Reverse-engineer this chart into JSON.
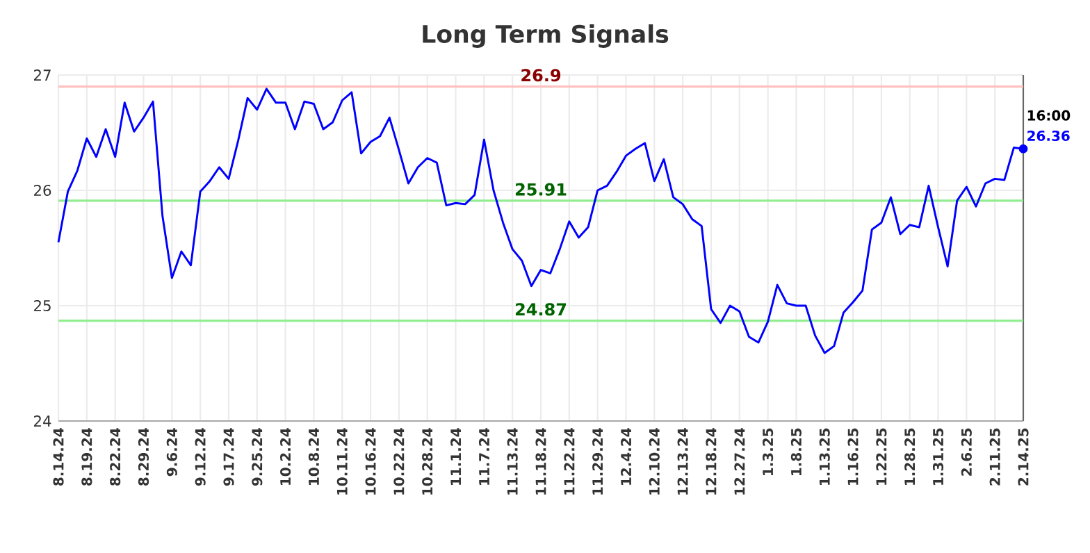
{
  "chart_data": {
    "type": "line",
    "title": "Long Term Signals",
    "categories": [
      "8.14.24",
      null,
      null,
      "8.19.24",
      null,
      null,
      "8.22.24",
      null,
      null,
      "8.29.24",
      null,
      null,
      "9.6.24",
      null,
      null,
      "9.12.24",
      null,
      null,
      "9.17.24",
      null,
      null,
      "9.25.24",
      null,
      null,
      "10.2.24",
      null,
      null,
      "10.8.24",
      null,
      null,
      "10.11.24",
      null,
      null,
      "10.16.24",
      null,
      null,
      "10.22.24",
      null,
      null,
      "10.28.24",
      null,
      null,
      "11.1.24",
      null,
      null,
      "11.7.24",
      null,
      null,
      "11.13.24",
      null,
      null,
      "11.18.24",
      null,
      null,
      "11.22.24",
      null,
      null,
      "11.29.24",
      null,
      null,
      "12.4.24",
      null,
      null,
      "12.10.24",
      null,
      null,
      "12.13.24",
      null,
      null,
      "12.18.24",
      null,
      null,
      "12.27.24",
      null,
      null,
      "1.3.25",
      null,
      null,
      "1.8.25",
      null,
      null,
      "1.13.25",
      null,
      null,
      "1.16.25",
      null,
      null,
      "1.22.25",
      null,
      null,
      "1.28.25",
      null,
      null,
      "1.31.25",
      null,
      null,
      "2.6.25",
      null,
      null,
      "2.11.25",
      null,
      null,
      "2.14.25"
    ],
    "series": [
      {
        "type": "line",
        "marker": "none",
        "color": "#0000ff",
        "values": [
          25.55,
          25.99,
          26.17,
          26.45,
          26.29,
          26.53,
          26.29,
          26.76,
          26.51,
          26.63,
          26.77,
          25.78,
          25.24,
          25.47,
          25.35,
          25.99,
          26.08,
          26.2,
          26.1,
          26.43,
          26.8,
          26.7,
          26.88,
          26.76,
          26.76,
          26.53,
          26.77,
          26.75,
          26.53,
          26.59,
          26.78,
          26.85,
          26.32,
          26.42,
          26.47,
          26.63,
          26.35,
          26.06,
          26.2,
          26.28,
          26.24,
          25.87,
          25.89,
          25.88,
          25.96,
          26.44,
          26.0,
          25.72,
          25.49,
          25.39,
          25.17,
          25.31,
          25.28,
          25.49,
          25.73,
          25.59,
          25.68,
          26.0,
          26.04,
          26.16,
          26.3,
          26.36,
          26.41,
          26.08,
          26.27,
          25.94,
          25.88,
          25.75,
          25.69,
          24.97,
          24.85,
          25.0,
          24.95,
          24.73,
          24.68,
          24.86,
          25.18,
          25.02,
          25.0,
          25.0,
          24.74,
          24.59,
          24.65,
          24.94,
          25.03,
          25.13,
          25.66,
          25.72,
          25.94,
          25.62,
          25.7,
          25.68,
          26.04,
          25.68,
          25.34,
          25.91,
          26.03,
          25.86,
          26.06,
          26.1,
          26.09,
          26.37,
          26.36
        ]
      },
      {
        "type": "scatter",
        "marker": "circle",
        "color": "#0000ff",
        "x": [
          "2.14.25"
        ],
        "values": [
          26.36
        ],
        "value_labels": [
          "26.36"
        ]
      }
    ],
    "annotations": [
      {
        "text": "16:00",
        "x": "2.14.25",
        "y": 26.36
      }
    ],
    "ylim": [
      24,
      27
    ],
    "yticks": [
      24,
      25,
      26,
      27
    ],
    "grid": true,
    "line_style": "solid",
    "ref_lines": [
      {
        "axis": "y",
        "value": 26.9,
        "label": "26.9",
        "color": "#ffc0c0"
      },
      {
        "axis": "y",
        "value": 25.91,
        "label": "25.91",
        "color": "#90ee90"
      },
      {
        "axis": "y",
        "value": 24.87,
        "label": "24.87",
        "color": "#90ee90"
      }
    ]
  }
}
